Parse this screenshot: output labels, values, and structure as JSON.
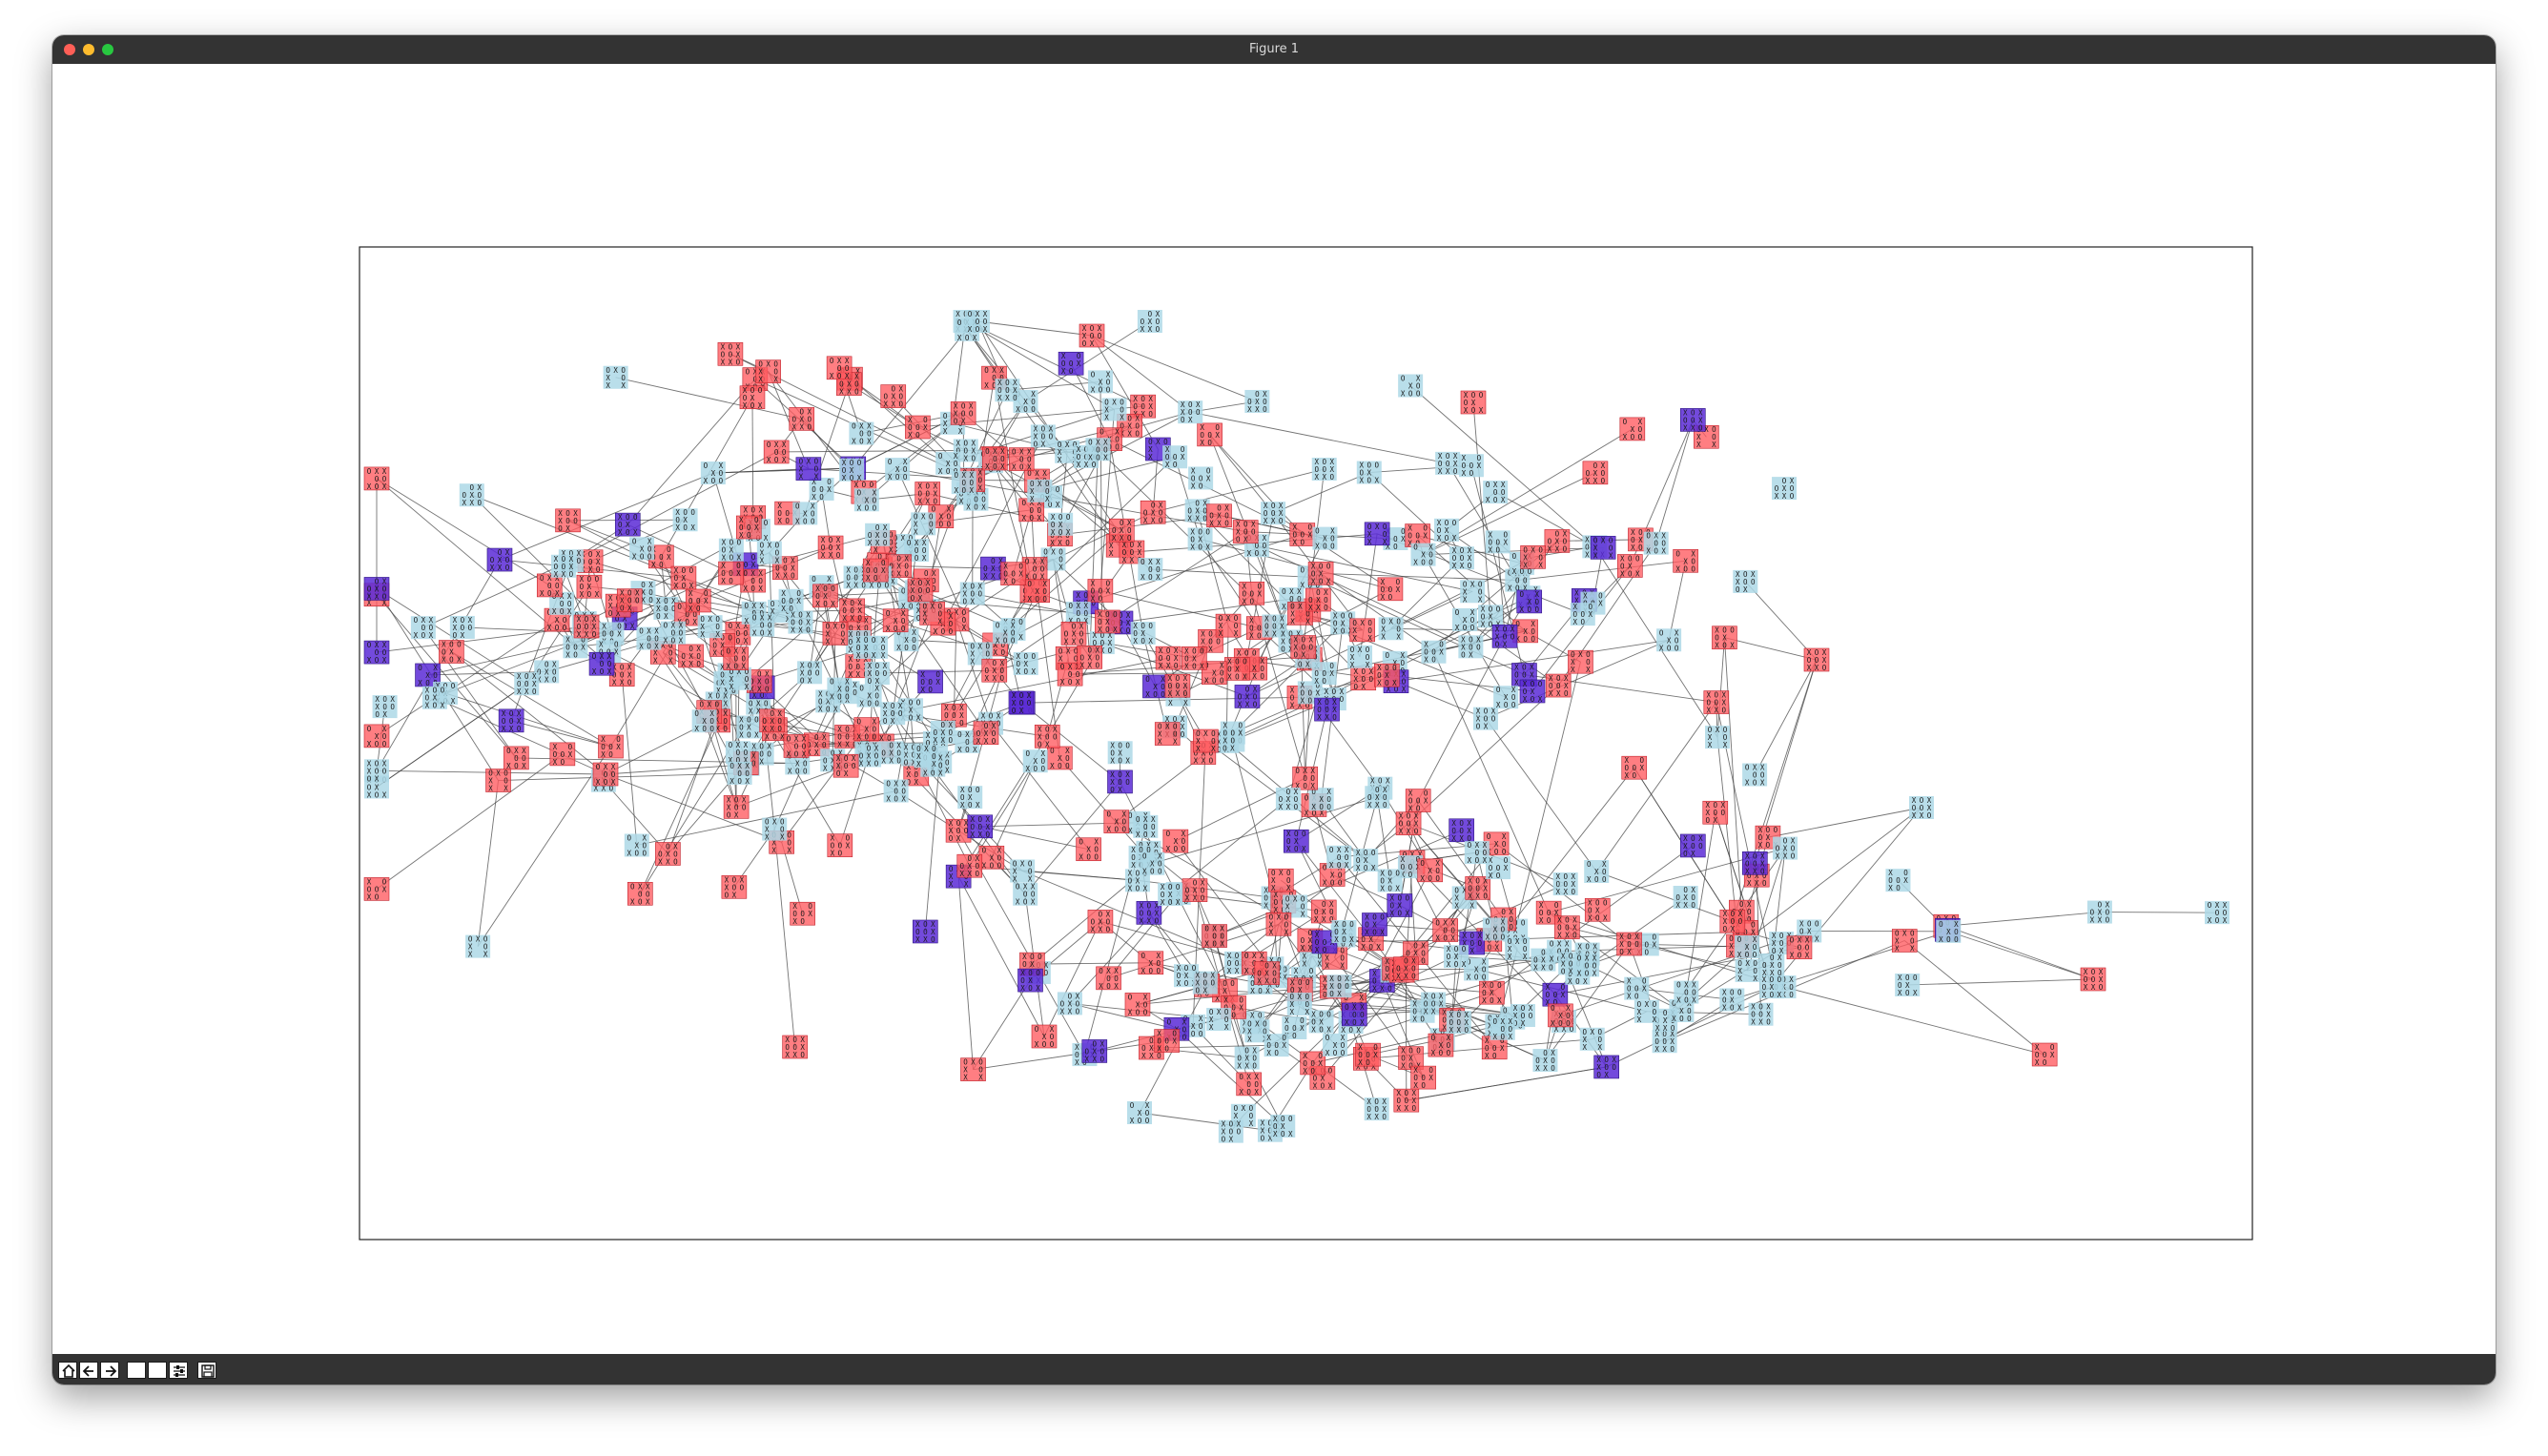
{
  "window": {
    "title": "Figure 1"
  },
  "toolbar": {
    "buttons": [
      {
        "name": "home",
        "icon": "home-icon"
      },
      {
        "name": "back",
        "icon": "arrow-left-icon"
      },
      {
        "name": "forward",
        "icon": "arrow-right-icon"
      },
      {
        "name": "pan",
        "icon": "pan-icon"
      },
      {
        "name": "zoom",
        "icon": "zoom-icon"
      },
      {
        "name": "subplots",
        "icon": "sliders-icon"
      },
      {
        "name": "save",
        "icon": "save-icon"
      }
    ]
  },
  "graph": {
    "type": "network",
    "description_colors": {
      "node_default": "#add8e6",
      "node_x_win": "#ff5a5f",
      "node_o_win": "#5b2ad6",
      "edge": "#444444",
      "text": "#1a1a1a"
    },
    "sample_boards": [
      [
        "O",
        "X",
        "X",
        "",
        "O",
        "O",
        "X",
        "O",
        "X"
      ],
      [
        "X",
        "O",
        "O",
        "O",
        "X",
        "",
        "X",
        "O",
        "X"
      ],
      [
        "O",
        "X",
        "O",
        "X",
        "",
        "O",
        "X",
        "",
        "X"
      ],
      [
        "X",
        "",
        "O",
        "O",
        "O",
        "X",
        "X",
        "O",
        ""
      ],
      [
        "X",
        "O",
        "X",
        "X",
        "O",
        "O",
        "O",
        "X",
        ""
      ],
      [
        "O",
        "",
        "X",
        "",
        "X",
        "O",
        "X",
        "O",
        "O"
      ],
      [
        "X",
        "O",
        "X",
        "O",
        "O",
        "X",
        "X",
        "X",
        "O"
      ],
      [
        "",
        "O",
        "X",
        "O",
        "X",
        "O",
        "X",
        "X",
        "O"
      ]
    ]
  }
}
